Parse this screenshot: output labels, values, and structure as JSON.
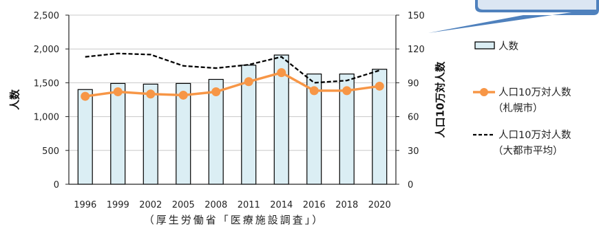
{
  "chart_data": {
    "type": "bar",
    "categories": [
      "1996",
      "1999",
      "2002",
      "2005",
      "2008",
      "2011",
      "2014",
      "2016",
      "2018",
      "2020"
    ],
    "y_left": {
      "label": "人数",
      "ylim": [
        0,
        2500
      ],
      "ticks": [
        "0",
        "500",
        "1,000",
        "1,500",
        "2,000",
        "2,500"
      ]
    },
    "y_right": {
      "label": "人口10万対人数",
      "ylim": [
        0,
        150
      ],
      "ticks": [
        "0",
        "30",
        "60",
        "90",
        "120",
        "150"
      ]
    },
    "series": [
      {
        "name": "人数",
        "kind": "bar",
        "axis": "left",
        "color": "#dbeef4",
        "values": [
          1400,
          1490,
          1480,
          1490,
          1550,
          1760,
          1910,
          1630,
          1630,
          1700
        ]
      },
      {
        "name": "人口10万対人数（札幌市）",
        "kind": "line",
        "axis": "right",
        "color": "#f79646",
        "values": [
          78,
          82,
          80,
          79,
          82,
          91,
          99,
          83,
          83,
          87
        ]
      },
      {
        "name": "人口10万対人数（大都市平均）",
        "kind": "dashed-line",
        "axis": "right",
        "color": "#000000",
        "values": [
          113,
          116,
          115,
          105,
          103,
          106,
          113,
          90,
          92,
          101
        ]
      }
    ],
    "legend": {
      "position": "right",
      "items": [
        {
          "line1": "人数",
          "line2": ""
        },
        {
          "line1": "人口10万対人数",
          "line2": "（札幌市）"
        },
        {
          "line1": "人口10万対人数",
          "line2": "（大都市平均）"
        }
      ]
    },
    "source_note": "（厚生労働省「医療施設調査」）",
    "grid": true
  },
  "colors": {
    "bar_fill": "#dbeef4",
    "bar_stroke": "#000000",
    "sapporo_line": "#f79646",
    "average_line": "#000000",
    "gridline": "#c8c8c8",
    "callout_fill": "#4f81bd",
    "callout_inner": "#dbe6f3"
  }
}
